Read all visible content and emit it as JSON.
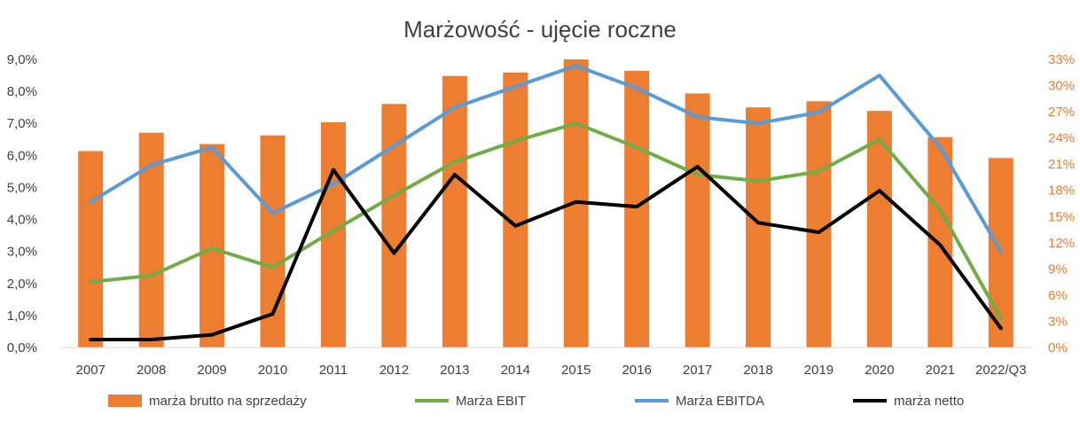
{
  "chart_data": {
    "type": "bar",
    "title": "Marżowość - ujęcie roczne",
    "categories": [
      "2007",
      "2008",
      "2009",
      "2010",
      "2011",
      "2012",
      "2013",
      "2014",
      "2015",
      "2016",
      "2017",
      "2018",
      "2019",
      "2020",
      "2021",
      "2022/Q3"
    ],
    "y_left": {
      "ticks": [
        "0,0%",
        "1,0%",
        "2,0%",
        "3,0%",
        "4,0%",
        "5,0%",
        "6,0%",
        "7,0%",
        "8,0%",
        "9,0%"
      ],
      "min": 0,
      "max": 9
    },
    "y_right": {
      "ticks": [
        "0%",
        "3%",
        "6%",
        "9%",
        "12%",
        "15%",
        "18%",
        "21%",
        "24%",
        "27%",
        "30%",
        "33%"
      ],
      "min": 0,
      "max": 33
    },
    "series": [
      {
        "name": "marża brutto na sprzedaży",
        "kind": "bar",
        "axis": "right",
        "color": "#ED7D31",
        "values": [
          22.5,
          24.6,
          23.3,
          24.3,
          25.8,
          27.9,
          31.1,
          31.5,
          33.0,
          31.7,
          29.1,
          27.5,
          28.2,
          27.1,
          24.1,
          21.7
        ]
      },
      {
        "name": "Marża EBIT",
        "kind": "line",
        "axis": "left",
        "color": "#70AD47",
        "values": [
          2.05,
          2.25,
          3.1,
          2.5,
          3.65,
          4.75,
          5.8,
          6.45,
          7.0,
          6.25,
          5.4,
          5.2,
          5.5,
          6.5,
          4.3,
          0.9
        ]
      },
      {
        "name": "Marża EBITDA",
        "kind": "line",
        "axis": "left",
        "color": "#5B9BD5",
        "values": [
          4.55,
          5.7,
          6.25,
          4.2,
          5.1,
          6.3,
          7.5,
          8.15,
          8.8,
          8.1,
          7.2,
          7.0,
          7.35,
          8.5,
          6.25,
          3.0
        ]
      },
      {
        "name": "marża netto",
        "kind": "line",
        "axis": "left",
        "color": "#000000",
        "values": [
          0.25,
          0.25,
          0.4,
          1.05,
          5.55,
          2.95,
          5.4,
          3.8,
          4.55,
          4.4,
          5.65,
          3.9,
          3.6,
          4.9,
          3.2,
          0.6
        ]
      }
    ],
    "grid": false,
    "legend_position": "bottom"
  }
}
